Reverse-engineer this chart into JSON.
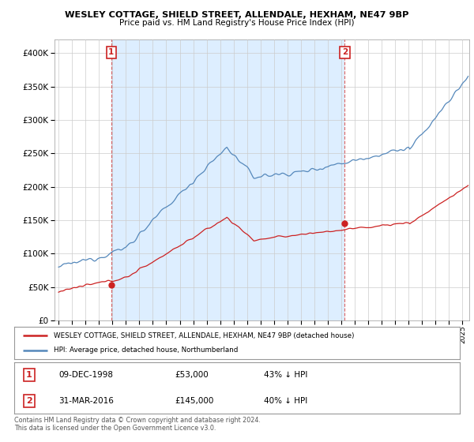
{
  "title": "WESLEY COTTAGE, SHIELD STREET, ALLENDALE, HEXHAM, NE47 9BP",
  "subtitle": "Price paid vs. HM Land Registry's House Price Index (HPI)",
  "legend_line1": "WESLEY COTTAGE, SHIELD STREET, ALLENDALE, HEXHAM, NE47 9BP (detached house)",
  "legend_line2": "HPI: Average price, detached house, Northumberland",
  "sale1_label": "1",
  "sale1_date": "09-DEC-1998",
  "sale1_price": "£53,000",
  "sale1_pct": "43% ↓ HPI",
  "sale1_year": 1998.92,
  "sale1_value": 53000,
  "sale2_label": "2",
  "sale2_date": "31-MAR-2016",
  "sale2_price": "£145,000",
  "sale2_pct": "40% ↓ HPI",
  "sale2_year": 2016.25,
  "sale2_value": 145000,
  "footer": "Contains HM Land Registry data © Crown copyright and database right 2024.\nThis data is licensed under the Open Government Licence v3.0.",
  "hpi_color": "#5588bb",
  "price_color": "#cc2222",
  "shade_color": "#ddeeff",
  "ylim_max": 420000,
  "ylim_min": 0,
  "xlim_min": 1994.7,
  "xlim_max": 2025.5,
  "background_color": "#ffffff",
  "grid_color": "#cccccc"
}
